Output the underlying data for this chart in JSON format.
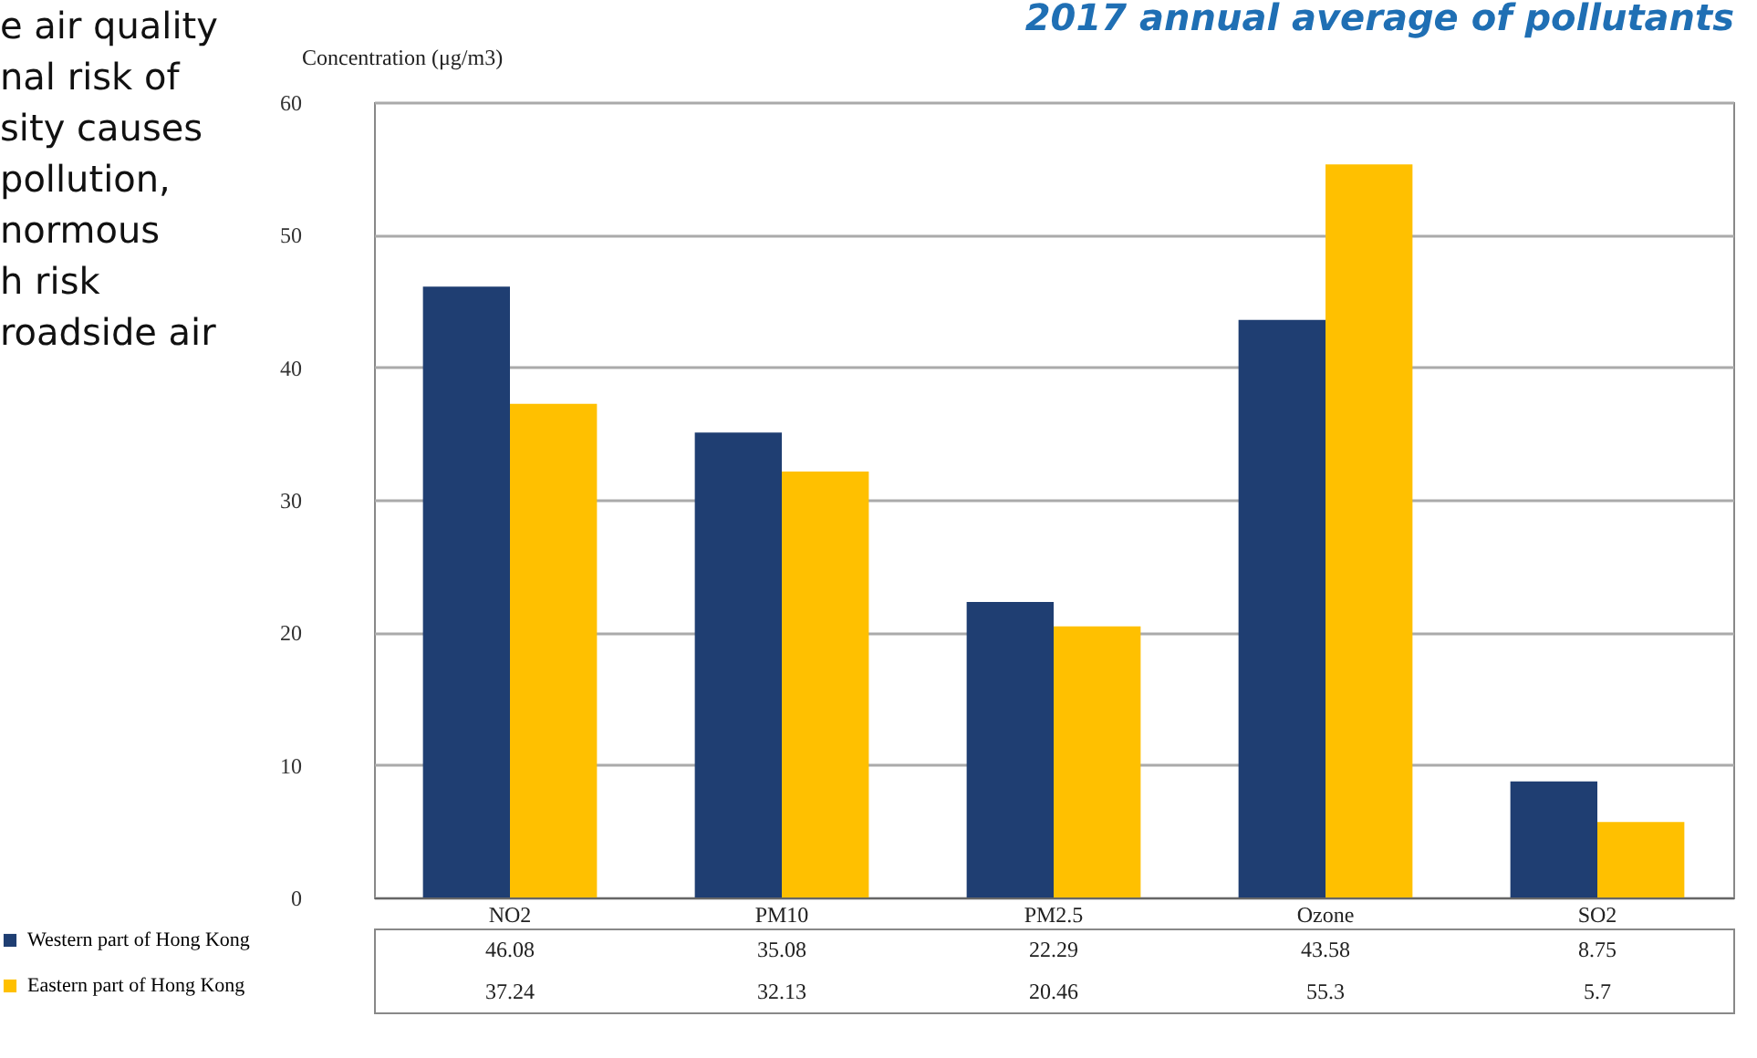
{
  "chart_data": {
    "type": "bar",
    "title": "2017 annual average of pollutants",
    "ylabel": "Concentration (μg/m3)",
    "categories": [
      "NO2",
      "PM10",
      "PM2.5",
      "Ozone",
      "SO2"
    ],
    "series": [
      {
        "name": "Western part of Hong Kong",
        "color": "#1f3e72",
        "values": [
          46.08,
          35.08,
          22.29,
          43.58,
          8.75
        ]
      },
      {
        "name": "Eastern part of Hong Kong",
        "color": "#ffc000",
        "values": [
          37.24,
          32.13,
          20.46,
          55.3,
          5.7
        ]
      }
    ],
    "ylim": [
      0,
      60
    ],
    "yticks": [
      0,
      10,
      20,
      30,
      40,
      50,
      60
    ],
    "grid": "y",
    "legend": "bottom left",
    "data_labels": true,
    "annotations": [
      "e air quality",
      "nal risk of",
      "sity causes",
      "pollution,",
      "normous",
      "h risk",
      "roadside air"
    ]
  }
}
